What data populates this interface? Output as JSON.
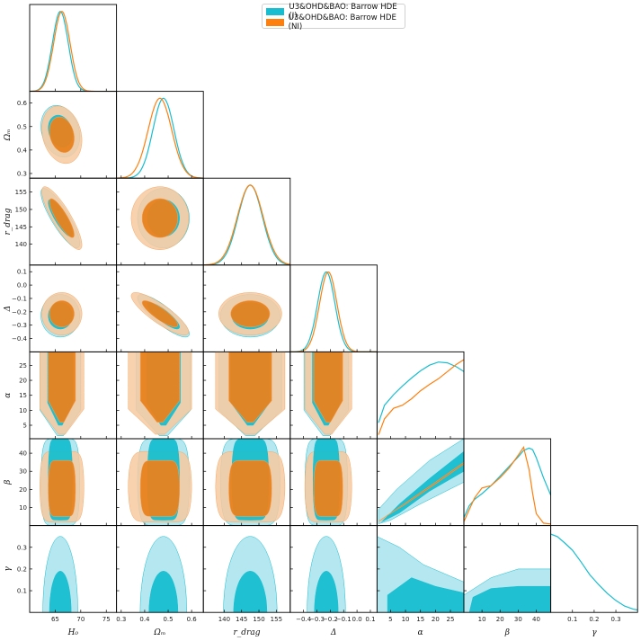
{
  "legend": {
    "items": [
      {
        "label": "U3&OHD&BAO: Barrow HDE (I)",
        "color": "#17becf"
      },
      {
        "label": "U3&OHD&BAO: Barrow HDE (NI)",
        "color": "#ff7f0e"
      }
    ]
  },
  "chart_data": {
    "type": "corner",
    "title": "",
    "parameters": [
      {
        "key": "H0",
        "label": "H₀",
        "range": [
          60,
          77
        ],
        "ticks": [
          65,
          70,
          75
        ],
        "tick_labels": [
          "65",
          "70",
          "75"
        ]
      },
      {
        "key": "Om",
        "label": "Ωₘ",
        "range": [
          0.28,
          0.65
        ],
        "ticks": [
          0.3,
          0.4,
          0.5,
          0.6
        ],
        "tick_labels": [
          "0.3",
          "0.4",
          "0.5",
          "0.6"
        ]
      },
      {
        "key": "rdrag",
        "label": "r_drag",
        "range": [
          134,
          159
        ],
        "ticks": [
          140,
          145,
          150,
          155
        ],
        "tick_labels": [
          "140",
          "145",
          "150",
          "155"
        ]
      },
      {
        "key": "Delta",
        "label": "Δ",
        "range": [
          -0.5,
          0.15
        ],
        "ticks": [
          -0.4,
          -0.3,
          -0.2,
          -0.1,
          0.0,
          0.1
        ],
        "tick_labels": [
          "−0.4",
          "−0.3",
          "−0.2",
          "−0.1",
          "0.0",
          "0.1"
        ]
      },
      {
        "key": "alpha",
        "label": "α",
        "range": [
          0.5,
          29.5
        ],
        "ticks": [
          5,
          10,
          15,
          20,
          25
        ],
        "tick_labels": [
          "5",
          "10",
          "15",
          "20",
          "25"
        ]
      },
      {
        "key": "beta",
        "label": "β",
        "range": [
          0,
          48
        ],
        "ticks": [
          10,
          20,
          30,
          40
        ],
        "tick_labels": [
          "10",
          "20",
          "30",
          "40"
        ]
      },
      {
        "key": "gamma",
        "label": "γ",
        "range": [
          0,
          0.4
        ],
        "ticks": [
          0.1,
          0.2,
          0.3
        ],
        "tick_labels": [
          "0.1",
          "0.2",
          "0.3"
        ]
      }
    ],
    "series": [
      {
        "name": "U3&OHD&BAO: Barrow HDE (I)",
        "color": "#17becf",
        "params": [
          "H0",
          "Om",
          "rdrag",
          "Delta",
          "alpha",
          "beta",
          "gamma"
        ],
        "mean": {
          "H0": 66.0,
          "Om": 0.48,
          "rdrag": 147.5,
          "Delta": -0.23,
          "beta": 35,
          "gamma": 0.1
        },
        "sigma": {
          "H0": 1.55,
          "Om": 0.045,
          "rdrag": 3.5,
          "Delta": 0.065,
          "beta": 10,
          "gamma": 0.08
        },
        "correlations": [
          {
            "pair": [
              "H0",
              "Om"
            ],
            "rho": -0.2
          },
          {
            "pair": [
              "H0",
              "rdrag"
            ],
            "rho": -0.85
          },
          {
            "pair": [
              "Om",
              "Delta"
            ],
            "rho": -0.85
          }
        ]
      },
      {
        "name": "U3&OHD&BAO: Barrow HDE (NI)",
        "color": "#ff7f0e",
        "params": [
          "H0",
          "Om",
          "rdrag",
          "Delta",
          "alpha",
          "beta"
        ],
        "mean": {
          "H0": 66.3,
          "Om": 0.465,
          "rdrag": 147.5,
          "Delta": -0.215,
          "beta": 33
        },
        "sigma": {
          "H0": 1.6,
          "Om": 0.05,
          "rdrag": 3.7,
          "Delta": 0.065,
          "beta": 9
        },
        "correlations": [
          {
            "pair": [
              "H0",
              "Om"
            ],
            "rho": -0.2
          },
          {
            "pair": [
              "H0",
              "rdrag"
            ],
            "rho": -0.85
          },
          {
            "pair": [
              "Om",
              "Delta"
            ],
            "rho": -0.85
          },
          {
            "pair": [
              "alpha",
              "beta"
            ],
            "rho": 0.9
          }
        ]
      }
    ],
    "marginals_1d": {
      "alpha": {
        "x": [
          1,
          3,
          6,
          9,
          12,
          15,
          18,
          21,
          24,
          27,
          29.5
        ],
        "I": [
          0.2,
          0.42,
          0.55,
          0.66,
          0.76,
          0.85,
          0.92,
          0.96,
          0.95,
          0.9,
          0.84
        ],
        "NI": [
          0.05,
          0.25,
          0.38,
          0.42,
          0.5,
          0.6,
          0.68,
          0.75,
          0.84,
          0.93,
          0.99
        ]
      },
      "beta": {
        "x": [
          0,
          3,
          6,
          10,
          15,
          20,
          25,
          30,
          33,
          36,
          38,
          40,
          44,
          48
        ],
        "I": [
          0.1,
          0.25,
          0.33,
          0.4,
          0.5,
          0.62,
          0.74,
          0.86,
          0.94,
          0.97,
          0.95,
          0.85,
          0.6,
          0.38
        ],
        "NI": [
          0.05,
          0.2,
          0.35,
          0.47,
          0.5,
          0.6,
          0.72,
          0.88,
          0.98,
          0.7,
          0.4,
          0.15,
          0.03,
          0.02
        ]
      },
      "gamma": {
        "x": [
          0,
          0.03,
          0.06,
          0.1,
          0.14,
          0.18,
          0.22,
          0.26,
          0.3,
          0.34,
          0.38,
          0.4
        ],
        "I": [
          0.98,
          0.95,
          0.88,
          0.78,
          0.63,
          0.47,
          0.35,
          0.24,
          0.15,
          0.08,
          0.04,
          0.03
        ]
      }
    },
    "contour_levels": [
      "68%",
      "95%"
    ]
  }
}
